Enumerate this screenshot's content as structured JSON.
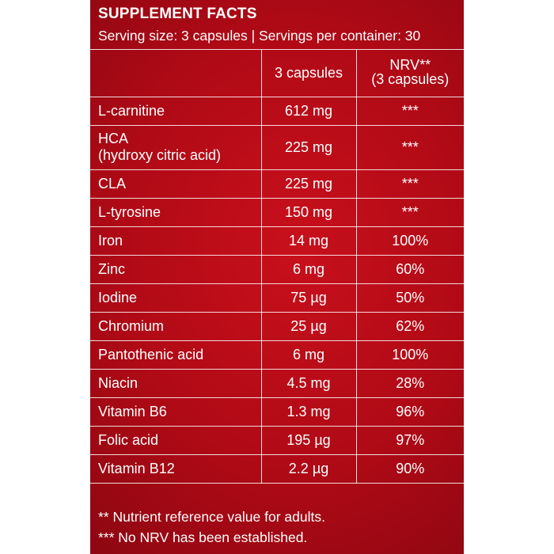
{
  "panel": {
    "title": "SUPPLEMENT FACTS",
    "subtitle": "Serving size: 3 capsules | Servings per container: 30"
  },
  "table": {
    "headers": {
      "amount": "3 capsules",
      "nrv_line1": "NRV**",
      "nrv_line2": "(3 capsules)"
    },
    "rows": [
      {
        "name": "L-carnitine",
        "amount": "612 mg",
        "nrv": "***"
      },
      {
        "name": "HCA",
        "name_line2": "(hydroxy citric acid)",
        "amount": "225 mg",
        "nrv": "***"
      },
      {
        "name": "CLA",
        "amount": "225 mg",
        "nrv": "***"
      },
      {
        "name": "L-tyrosine",
        "amount": "150 mg",
        "nrv": "***"
      },
      {
        "name": "Iron",
        "amount": "14 mg",
        "nrv": "100%"
      },
      {
        "name": "Zinc",
        "amount": "6 mg",
        "nrv": "60%"
      },
      {
        "name": "Iodine",
        "amount": "75 µg",
        "nrv": "50%"
      },
      {
        "name": "Chromium",
        "amount": "25 µg",
        "nrv": "62%"
      },
      {
        "name": "Pantothenic acid",
        "amount": "6 mg",
        "nrv": "100%"
      },
      {
        "name": "Niacin",
        "amount": "4.5 mg",
        "nrv": "28%"
      },
      {
        "name": "Vitamin B6",
        "amount": "1.3 mg",
        "nrv": "96%"
      },
      {
        "name": "Folic acid",
        "amount": "195 µg",
        "nrv": "97%"
      },
      {
        "name": "Vitamin B12",
        "amount": "2.2 µg",
        "nrv": "90%"
      }
    ]
  },
  "footnotes": [
    "** Nutrient reference value for adults.",
    "*** No NRV has been established."
  ],
  "colors": {
    "panel_red": "#b00a16",
    "text": "#ffffff",
    "background": "#ffffff"
  }
}
